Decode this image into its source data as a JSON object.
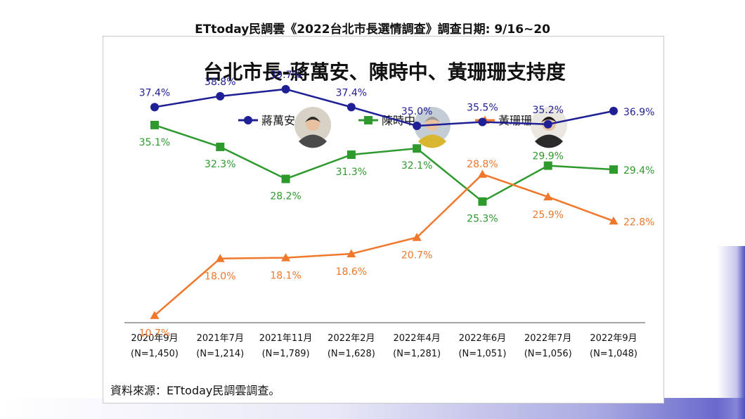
{
  "caption": "ETtoday民調雲《2022台北市長選情調查》調查日期: 9/16~20",
  "source": "資料來源：ETtoday民調雲調查。",
  "colors": {
    "series_1": "#1f1f96",
    "series_2": "#2e9a2e",
    "series_3": "#f0782c"
  },
  "chart_data": {
    "type": "line",
    "title": "台北市長-蔣萬安、陳時中、黃珊珊支持度",
    "categories": [
      "2020年9月",
      "2021年7月",
      "2021年11月",
      "2022年2月",
      "2022年4月",
      "2022年6月",
      "2022年7月",
      "2022年9月"
    ],
    "sample_sizes": [
      "(N=1,450)",
      "(N=1,214)",
      "(N=1,789)",
      "(N=1,628)",
      "(N=1,281)",
      "(N=1,051)",
      "(N=1,056)",
      "(N=1,048)"
    ],
    "series": [
      {
        "name": "蔣萬安",
        "marker": "circle",
        "values": [
          37.4,
          38.8,
          39.7,
          37.4,
          35.0,
          35.5,
          35.2,
          36.9
        ],
        "labels": [
          "37.4%",
          "38.8%",
          "39.7%",
          "37.4%",
          "35.0%",
          "35.5%",
          "35.2%",
          "36.9%"
        ]
      },
      {
        "name": "陳時中",
        "marker": "square",
        "values": [
          35.1,
          32.3,
          28.2,
          31.3,
          32.1,
          25.3,
          29.9,
          29.4
        ],
        "labels": [
          "35.1%",
          "32.3%",
          "28.2%",
          "31.3%",
          "32.1%",
          "25.3%",
          "29.9%",
          "29.4%"
        ]
      },
      {
        "name": "黃珊珊",
        "marker": "triangle",
        "values": [
          10.7,
          18.0,
          18.1,
          18.6,
          20.7,
          28.8,
          25.9,
          22.8
        ],
        "labels": [
          "10.7%",
          "18.0%",
          "18.1%",
          "18.6%",
          "20.7%",
          "28.8%",
          "25.9%",
          "22.8%"
        ]
      }
    ],
    "legend_position": "top-center",
    "grid": false
  }
}
